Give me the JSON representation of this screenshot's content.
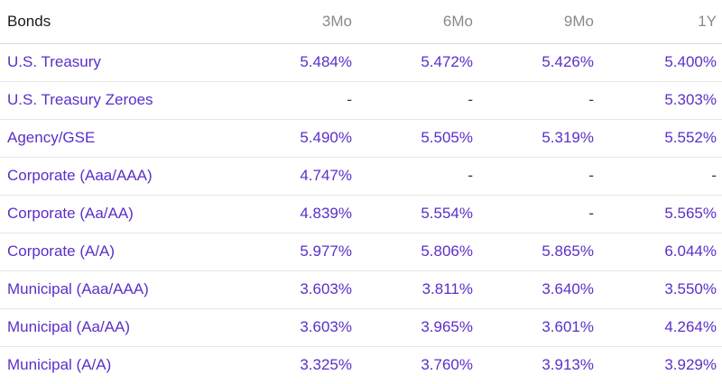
{
  "table": {
    "headers": [
      "Bonds",
      "3Mo",
      "6Mo",
      "9Mo",
      "1Y"
    ],
    "rows": [
      {
        "name": "U.S. Treasury",
        "values": [
          "5.484%",
          "5.472%",
          "5.426%",
          "5.400%"
        ]
      },
      {
        "name": "U.S. Treasury Zeroes",
        "values": [
          "-",
          "-",
          "-",
          "5.303%"
        ]
      },
      {
        "name": "Agency/GSE",
        "values": [
          "5.490%",
          "5.505%",
          "5.319%",
          "5.552%"
        ]
      },
      {
        "name": "Corporate (Aaa/AAA)",
        "values": [
          "4.747%",
          "-",
          "-",
          "-"
        ]
      },
      {
        "name": "Corporate (Aa/AA)",
        "values": [
          "4.839%",
          "5.554%",
          "-",
          "5.565%"
        ]
      },
      {
        "name": "Corporate (A/A)",
        "values": [
          "5.977%",
          "5.806%",
          "5.865%",
          "6.044%"
        ]
      },
      {
        "name": "Municipal (Aaa/AAA)",
        "values": [
          "3.603%",
          "3.811%",
          "3.640%",
          "3.550%"
        ]
      },
      {
        "name": "Municipal (Aa/AA)",
        "values": [
          "3.603%",
          "3.965%",
          "3.601%",
          "4.264%"
        ]
      },
      {
        "name": "Municipal (A/A)",
        "values": [
          "3.325%",
          "3.760%",
          "3.913%",
          "3.929%"
        ]
      }
    ]
  },
  "colors": {
    "link": "#5b2fc9",
    "header_muted": "#8a8a8a",
    "header_primary": "#1a1a1a",
    "dash": "#333333",
    "divider": "#e6e6e6"
  }
}
